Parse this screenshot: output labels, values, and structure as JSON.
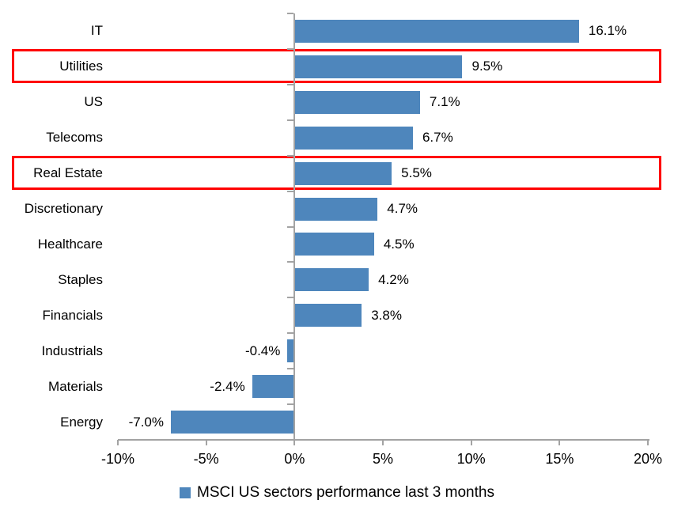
{
  "chart_data": {
    "type": "bar",
    "orientation": "horizontal",
    "categories": [
      "IT",
      "Utilities",
      "US",
      "Telecoms",
      "Real Estate",
      "Discretionary",
      "Healthcare",
      "Staples",
      "Financials",
      "Industrials",
      "Materials",
      "Energy"
    ],
    "values": [
      16.1,
      9.5,
      7.1,
      6.7,
      5.5,
      4.7,
      4.5,
      4.2,
      3.8,
      -0.4,
      -2.4,
      -7.0
    ],
    "value_labels": [
      "16.1%",
      "9.5%",
      "7.1%",
      "6.7%",
      "5.5%",
      "4.7%",
      "4.5%",
      "4.2%",
      "3.8%",
      "-0.4%",
      "-2.4%",
      "-7.0%"
    ],
    "highlighted_categories": [
      "Utilities",
      "Real Estate"
    ],
    "highlight_indices": [
      1,
      4
    ],
    "xlim": [
      -10,
      20
    ],
    "xticks": [
      -10,
      -5,
      0,
      5,
      10,
      15,
      20
    ],
    "xtick_labels": [
      "-10%",
      "-5%",
      "0%",
      "5%",
      "10%",
      "15%",
      "20%"
    ],
    "legend": "MSCI US sectors performance last 3 months",
    "legend_position": "bottom",
    "grid": false,
    "title": "",
    "xlabel": "",
    "ylabel": "",
    "colors": {
      "bar": "#4E86BC",
      "axis": "#A3A3A3",
      "highlight_box": "#FF0000",
      "text": "#000000"
    }
  }
}
